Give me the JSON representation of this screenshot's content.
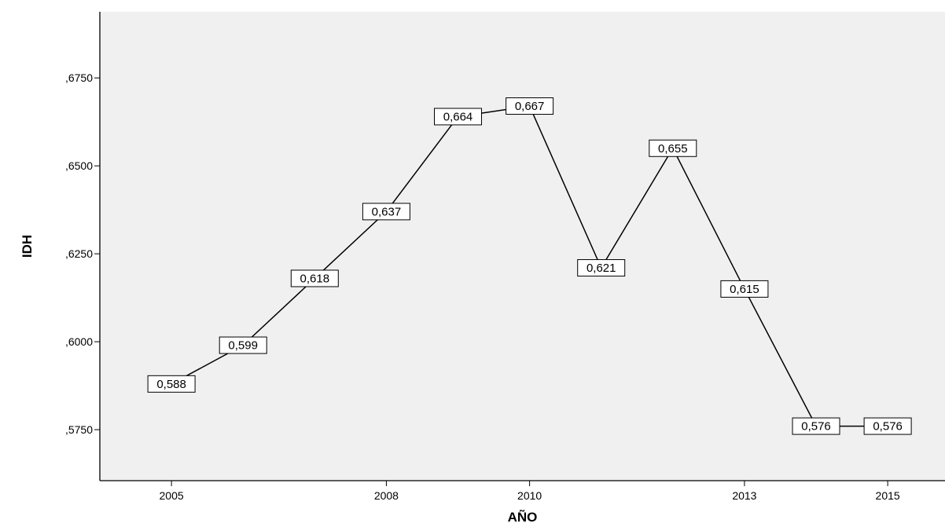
{
  "chart_data": {
    "type": "line",
    "xlabel": "AÑO",
    "ylabel": "IDH",
    "x": [
      2005,
      2006,
      2007,
      2008,
      2009,
      2010,
      2011,
      2012,
      2013,
      2014,
      2015
    ],
    "values": [
      0.588,
      0.599,
      0.618,
      0.637,
      0.664,
      0.667,
      0.621,
      0.655,
      0.615,
      0.576,
      0.576
    ],
    "data_labels": [
      "0,588",
      "0,599",
      "0,618",
      "0,637",
      "0,664",
      "0,667",
      "0,621",
      "0,655",
      "0,615",
      "0,576",
      "0,576"
    ],
    "x_tick_labels": [
      "2005",
      "2008",
      "2010",
      "2013",
      "2015"
    ],
    "y_ticks": [
      0.575,
      0.6,
      0.625,
      0.65,
      0.675
    ],
    "y_tick_labels": [
      ",5750",
      ",6000",
      ",6250",
      ",6500",
      ",6750"
    ],
    "ylim": [
      0.5605,
      0.6938
    ],
    "xlim": [
      2004.0,
      2015.8
    ],
    "grid": false,
    "legend": "none",
    "colors": {
      "plot_background": "#f0f0f0",
      "line": "#000000",
      "label_box": "#ffffff"
    }
  }
}
